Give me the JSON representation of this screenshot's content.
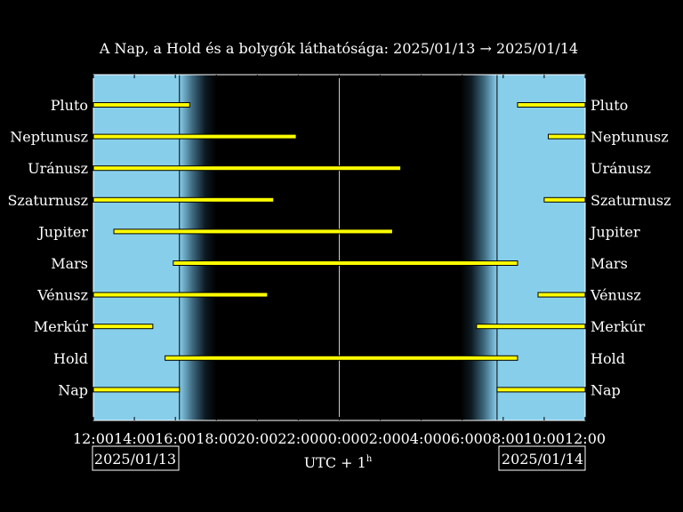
{
  "chart_data": {
    "type": "timeline",
    "title": "A Nap, a Hold és a bolygók láthatósága: 2025/01/13 → 2025/01/14",
    "xlabel_base": "UTC + 1",
    "xlabel_sup": "h",
    "date_left": "2025/01/13",
    "date_right": "2025/01/14",
    "x_range_hours": [
      12,
      36
    ],
    "x_ticks": [
      {
        "h": 12,
        "label": "12:00"
      },
      {
        "h": 14,
        "label": "14:00"
      },
      {
        "h": 16,
        "label": "16:00"
      },
      {
        "h": 18,
        "label": "18:00"
      },
      {
        "h": 20,
        "label": "20:00"
      },
      {
        "h": 22,
        "label": "22:00"
      },
      {
        "h": 24,
        "label": "00:00"
      },
      {
        "h": 26,
        "label": "02:00"
      },
      {
        "h": 28,
        "label": "04:00"
      },
      {
        "h": 30,
        "label": "06:00"
      },
      {
        "h": 32,
        "label": "08:00"
      },
      {
        "h": 34,
        "label": "10:00"
      },
      {
        "h": 36,
        "label": "12:00"
      }
    ],
    "sunset_h": 16.2,
    "dusk_end_h": 18.0,
    "dawn_start_h": 29.9,
    "sunrise_h": 31.7,
    "midnight_h": 24,
    "colors": {
      "day": "#87ceeb",
      "night": "#000000",
      "bar": "#ffff00",
      "text": "#ffffff"
    },
    "bodies": [
      {
        "name": "Pluto",
        "intervals": [
          [
            12,
            16.7
          ],
          [
            32.7,
            36
          ]
        ]
      },
      {
        "name": "Neptunusz",
        "intervals": [
          [
            12,
            21.9
          ],
          [
            34.2,
            36
          ]
        ]
      },
      {
        "name": "Uránusz",
        "intervals": [
          [
            12,
            27.0
          ]
        ]
      },
      {
        "name": "Szaturnusz",
        "intervals": [
          [
            12,
            20.8
          ],
          [
            34.0,
            36
          ]
        ]
      },
      {
        "name": "Jupiter",
        "intervals": [
          [
            13.0,
            26.6
          ]
        ]
      },
      {
        "name": "Mars",
        "intervals": [
          [
            15.9,
            32.7
          ]
        ]
      },
      {
        "name": "Vénusz",
        "intervals": [
          [
            12,
            20.5
          ],
          [
            33.7,
            36
          ]
        ]
      },
      {
        "name": "Merkúr",
        "intervals": [
          [
            12,
            14.9
          ],
          [
            30.7,
            36
          ]
        ]
      },
      {
        "name": "Hold",
        "intervals": [
          [
            15.5,
            32.7
          ]
        ]
      },
      {
        "name": "Nap",
        "intervals": [
          [
            12,
            16.2
          ],
          [
            31.7,
            36
          ]
        ]
      }
    ]
  }
}
